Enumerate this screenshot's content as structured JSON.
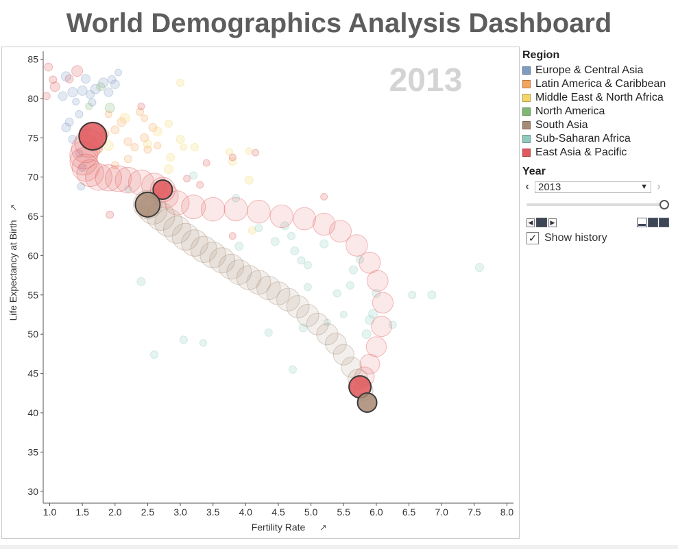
{
  "title": "World Demographics Analysis Dashboard",
  "colors": {
    "europe_central_asia": "#7f9bc2",
    "latin_america_caribbean": "#f4a45a",
    "middle_east_north_africa": "#f4d667",
    "north_america": "#7fb872",
    "south_asia": "#a88b75",
    "sub_saharan_africa": "#8fcbbf",
    "east_asia_pacific": "#e0595d"
  },
  "legend": {
    "title": "Region",
    "items": [
      {
        "label": "Europe & Central Asia",
        "color": "#7f9bc2"
      },
      {
        "label": "Latin America & Caribbean",
        "color": "#f4a45a"
      },
      {
        "label": "Middle East & North Africa",
        "color": "#f4d667"
      },
      {
        "label": "North America",
        "color": "#7fb872"
      },
      {
        "label": "South Asia",
        "color": "#a88b75"
      },
      {
        "label": "Sub-Saharan Africa",
        "color": "#8fcbbf"
      },
      {
        "label": "East Asia & Pacific",
        "color": "#e0595d"
      }
    ]
  },
  "year_filter": {
    "title": "Year",
    "selected": "2013",
    "show_history_label": "Show history",
    "show_history_checked": true,
    "prev_icon": "chevron-left-icon",
    "next_icon": "chevron-right-icon"
  },
  "chart_data": {
    "type": "scatter",
    "title": "",
    "year_label": "2013",
    "xlabel": "Fertility Rate",
    "ylabel": "Life Expectancy at Birth",
    "xlim": [
      0.9,
      8.1
    ],
    "ylim": [
      28.5,
      86
    ],
    "xticks": [
      1.0,
      1.5,
      2.0,
      2.5,
      3.0,
      3.5,
      4.0,
      4.5,
      5.0,
      5.5,
      6.0,
      6.5,
      7.0,
      7.5,
      8.0
    ],
    "yticks": [
      30,
      35,
      40,
      45,
      50,
      55,
      60,
      65,
      70,
      75,
      80,
      85
    ],
    "grid": false,
    "legend_position": "right",
    "history_series": [
      {
        "region": "East Asia & Pacific",
        "color": "#e0595d",
        "points": [
          [
            5.75,
            43.3
          ],
          [
            5.82,
            44.6
          ],
          [
            5.9,
            46.2
          ],
          [
            6.0,
            48.4
          ],
          [
            6.08,
            51.0
          ],
          [
            6.1,
            54.0
          ],
          [
            6.02,
            56.8
          ],
          [
            5.9,
            59.1
          ],
          [
            5.7,
            61.3
          ],
          [
            5.45,
            63.1
          ],
          [
            5.2,
            64.0
          ],
          [
            4.9,
            64.7
          ],
          [
            4.55,
            65.0
          ],
          [
            4.2,
            65.6
          ],
          [
            3.85,
            65.9
          ],
          [
            3.5,
            65.9
          ],
          [
            3.2,
            66.2
          ],
          [
            2.95,
            66.7
          ],
          [
            2.78,
            67.6
          ],
          [
            2.73,
            68.4
          ],
          [
            2.6,
            68.9
          ],
          [
            2.4,
            69.3
          ],
          [
            2.2,
            69.6
          ],
          [
            2.05,
            69.8
          ],
          [
            1.9,
            69.9
          ],
          [
            1.75,
            70.0
          ],
          [
            1.62,
            70.5
          ],
          [
            1.55,
            71.2
          ],
          [
            1.52,
            72.0
          ],
          [
            1.52,
            72.8
          ],
          [
            1.55,
            73.6
          ],
          [
            1.6,
            74.3
          ],
          [
            1.66,
            75.2
          ]
        ]
      },
      {
        "region": "South Asia",
        "color": "#a88b75",
        "points": [
          [
            5.86,
            41.3
          ],
          [
            5.8,
            42.8
          ],
          [
            5.72,
            44.3
          ],
          [
            5.62,
            45.8
          ],
          [
            5.5,
            47.4
          ],
          [
            5.38,
            48.8
          ],
          [
            5.25,
            50.0
          ],
          [
            5.1,
            51.3
          ],
          [
            4.95,
            52.4
          ],
          [
            4.8,
            53.5
          ],
          [
            4.65,
            54.4
          ],
          [
            4.5,
            55.2
          ],
          [
            4.35,
            55.9
          ],
          [
            4.2,
            56.6
          ],
          [
            4.05,
            57.2
          ],
          [
            3.9,
            57.9
          ],
          [
            3.78,
            58.6
          ],
          [
            3.64,
            59.4
          ],
          [
            3.5,
            60.1
          ],
          [
            3.36,
            60.8
          ],
          [
            3.22,
            61.6
          ],
          [
            3.08,
            62.4
          ],
          [
            2.95,
            63.3
          ],
          [
            2.82,
            64.2
          ],
          [
            2.7,
            65.0
          ],
          [
            2.58,
            65.8
          ],
          [
            2.5,
            66.5
          ]
        ]
      }
    ],
    "highlight_points": [
      {
        "region": "East Asia & Pacific",
        "x": 1.66,
        "y": 75.2,
        "size": 40,
        "color": "#e0595d"
      },
      {
        "region": "East Asia & Pacific",
        "x": 2.73,
        "y": 68.4,
        "size": 28,
        "color": "#e0595d"
      },
      {
        "region": "East Asia & Pacific",
        "x": 5.75,
        "y": 43.3,
        "size": 32,
        "color": "#e0595d"
      },
      {
        "region": "South Asia",
        "x": 2.5,
        "y": 66.5,
        "size": 36,
        "color": "#a88b75"
      },
      {
        "region": "South Asia",
        "x": 5.86,
        "y": 41.3,
        "size": 28,
        "color": "#a88b75"
      }
    ],
    "background_points": [
      {
        "x": 0.98,
        "y": 84.0,
        "s": 12,
        "c": "#e0595d"
      },
      {
        "x": 0.95,
        "y": 80.3,
        "s": 11,
        "c": "#e0595d"
      },
      {
        "x": 1.05,
        "y": 82.4,
        "s": 11,
        "c": "#e0595d"
      },
      {
        "x": 1.08,
        "y": 81.5,
        "s": 14,
        "c": "#e0595d"
      },
      {
        "x": 1.3,
        "y": 82.5,
        "s": 12,
        "c": "#e0595d"
      },
      {
        "x": 1.42,
        "y": 83.5,
        "s": 16,
        "c": "#e0595d"
      },
      {
        "x": 1.5,
        "y": 81.0,
        "s": 14,
        "c": "#7f9bc2"
      },
      {
        "x": 1.35,
        "y": 80.8,
        "s": 14,
        "c": "#7f9bc2"
      },
      {
        "x": 1.2,
        "y": 80.3,
        "s": 13,
        "c": "#7f9bc2"
      },
      {
        "x": 1.25,
        "y": 82.8,
        "s": 14,
        "c": "#7f9bc2"
      },
      {
        "x": 1.55,
        "y": 82.5,
        "s": 13,
        "c": "#7f9bc2"
      },
      {
        "x": 1.62,
        "y": 80.5,
        "s": 12,
        "c": "#7f9bc2"
      },
      {
        "x": 1.7,
        "y": 81.2,
        "s": 14,
        "c": "#7f9bc2"
      },
      {
        "x": 1.82,
        "y": 82.0,
        "s": 14,
        "c": "#7f9bc2"
      },
      {
        "x": 1.9,
        "y": 80.8,
        "s": 13,
        "c": "#7f9bc2"
      },
      {
        "x": 1.95,
        "y": 82.4,
        "s": 12,
        "c": "#7f9bc2"
      },
      {
        "x": 2.0,
        "y": 81.8,
        "s": 13,
        "c": "#7f9bc2"
      },
      {
        "x": 1.45,
        "y": 78.0,
        "s": 11,
        "c": "#7f9bc2"
      },
      {
        "x": 1.3,
        "y": 77.0,
        "s": 12,
        "c": "#7f9bc2"
      },
      {
        "x": 1.25,
        "y": 76.3,
        "s": 13,
        "c": "#7f9bc2"
      },
      {
        "x": 1.55,
        "y": 76.0,
        "s": 11,
        "c": "#7f9bc2"
      },
      {
        "x": 1.35,
        "y": 74.8,
        "s": 12,
        "c": "#7f9bc2"
      },
      {
        "x": 1.45,
        "y": 73.0,
        "s": 11,
        "c": "#7f9bc2"
      },
      {
        "x": 1.5,
        "y": 71.2,
        "s": 11,
        "c": "#7f9bc2"
      },
      {
        "x": 1.65,
        "y": 79.5,
        "s": 11,
        "c": "#7f9bc2"
      },
      {
        "x": 2.05,
        "y": 83.3,
        "s": 10,
        "c": "#7f9bc2"
      },
      {
        "x": 1.48,
        "y": 68.8,
        "s": 11,
        "c": "#7f9bc2"
      },
      {
        "x": 1.4,
        "y": 79.6,
        "s": 10,
        "c": "#7f9bc2"
      },
      {
        "x": 1.78,
        "y": 81.5,
        "s": 12,
        "c": "#7fb872"
      },
      {
        "x": 1.92,
        "y": 78.8,
        "s": 14,
        "c": "#7fb872"
      },
      {
        "x": 1.6,
        "y": 79.0,
        "s": 10,
        "c": "#7fb872"
      },
      {
        "x": 1.75,
        "y": 73.5,
        "s": 11,
        "c": "#f4a45a"
      },
      {
        "x": 1.85,
        "y": 75.5,
        "s": 11,
        "c": "#f4a45a"
      },
      {
        "x": 2.0,
        "y": 76.0,
        "s": 12,
        "c": "#f4a45a"
      },
      {
        "x": 2.1,
        "y": 77.0,
        "s": 13,
        "c": "#f4a45a"
      },
      {
        "x": 2.2,
        "y": 74.5,
        "s": 12,
        "c": "#f4a45a"
      },
      {
        "x": 2.3,
        "y": 73.8,
        "s": 11,
        "c": "#f4a45a"
      },
      {
        "x": 2.45,
        "y": 75.0,
        "s": 12,
        "c": "#f4a45a"
      },
      {
        "x": 2.5,
        "y": 73.5,
        "s": 11,
        "c": "#f4a45a"
      },
      {
        "x": 2.58,
        "y": 76.3,
        "s": 12,
        "c": "#f4a45a"
      },
      {
        "x": 2.2,
        "y": 72.3,
        "s": 11,
        "c": "#f4a45a"
      },
      {
        "x": 2.0,
        "y": 71.5,
        "s": 11,
        "c": "#f4a45a"
      },
      {
        "x": 2.38,
        "y": 78.3,
        "s": 11,
        "c": "#f4a45a"
      },
      {
        "x": 2.45,
        "y": 77.5,
        "s": 10,
        "c": "#f4a45a"
      },
      {
        "x": 2.65,
        "y": 74.0,
        "s": 10,
        "c": "#f4a45a"
      },
      {
        "x": 1.9,
        "y": 78.0,
        "s": 10,
        "c": "#f4a45a"
      },
      {
        "x": 2.4,
        "y": 79.0,
        "s": 10,
        "c": "#e0595d"
      },
      {
        "x": 1.9,
        "y": 74.0,
        "s": 14,
        "c": "#f4d667"
      },
      {
        "x": 2.15,
        "y": 77.5,
        "s": 14,
        "c": "#f4d667"
      },
      {
        "x": 2.5,
        "y": 74.2,
        "s": 12,
        "c": "#f4d667"
      },
      {
        "x": 2.65,
        "y": 75.8,
        "s": 13,
        "c": "#f4d667"
      },
      {
        "x": 2.82,
        "y": 71.0,
        "s": 13,
        "c": "#f4d667"
      },
      {
        "x": 2.85,
        "y": 72.5,
        "s": 12,
        "c": "#f4d667"
      },
      {
        "x": 3.0,
        "y": 74.8,
        "s": 12,
        "c": "#f4d667"
      },
      {
        "x": 3.0,
        "y": 82.0,
        "s": 11,
        "c": "#f4d667"
      },
      {
        "x": 3.22,
        "y": 73.8,
        "s": 11,
        "c": "#f4d667"
      },
      {
        "x": 2.82,
        "y": 76.8,
        "s": 11,
        "c": "#f4d667"
      },
      {
        "x": 3.05,
        "y": 73.8,
        "s": 10,
        "c": "#f4d667"
      },
      {
        "x": 3.75,
        "y": 73.2,
        "s": 10,
        "c": "#f4d667"
      },
      {
        "x": 3.8,
        "y": 72.0,
        "s": 12,
        "c": "#f4d667"
      },
      {
        "x": 4.05,
        "y": 73.3,
        "s": 10,
        "c": "#f4d667"
      },
      {
        "x": 4.05,
        "y": 69.6,
        "s": 12,
        "c": "#f4d667"
      },
      {
        "x": 4.1,
        "y": 63.2,
        "s": 11,
        "c": "#f4d667"
      },
      {
        "x": 2.45,
        "y": 65.8,
        "s": 11,
        "c": "#f4d667"
      },
      {
        "x": 3.4,
        "y": 71.8,
        "s": 10,
        "c": "#e0595d"
      },
      {
        "x": 3.8,
        "y": 72.5,
        "s": 10,
        "c": "#e0595d"
      },
      {
        "x": 4.15,
        "y": 73.1,
        "s": 10,
        "c": "#e0595d"
      },
      {
        "x": 3.1,
        "y": 69.8,
        "s": 10,
        "c": "#e0595d"
      },
      {
        "x": 3.3,
        "y": 69.0,
        "s": 10,
        "c": "#e0595d"
      },
      {
        "x": 1.92,
        "y": 65.2,
        "s": 11,
        "c": "#e0595d"
      },
      {
        "x": 3.8,
        "y": 62.5,
        "s": 10,
        "c": "#e0595d"
      },
      {
        "x": 5.2,
        "y": 67.5,
        "s": 10,
        "c": "#e0595d"
      },
      {
        "x": 2.2,
        "y": 68.5,
        "s": 10,
        "c": "#8fcbbf"
      },
      {
        "x": 2.4,
        "y": 56.7,
        "s": 12,
        "c": "#8fcbbf"
      },
      {
        "x": 2.6,
        "y": 47.4,
        "s": 11,
        "c": "#8fcbbf"
      },
      {
        "x": 3.05,
        "y": 49.3,
        "s": 11,
        "c": "#8fcbbf"
      },
      {
        "x": 3.35,
        "y": 48.9,
        "s": 10,
        "c": "#8fcbbf"
      },
      {
        "x": 3.2,
        "y": 70.2,
        "s": 11,
        "c": "#8fcbbf"
      },
      {
        "x": 3.85,
        "y": 67.3,
        "s": 11,
        "c": "#8fcbbf"
      },
      {
        "x": 3.9,
        "y": 61.2,
        "s": 12,
        "c": "#8fcbbf"
      },
      {
        "x": 4.2,
        "y": 63.5,
        "s": 11,
        "c": "#8fcbbf"
      },
      {
        "x": 4.45,
        "y": 61.8,
        "s": 12,
        "c": "#8fcbbf"
      },
      {
        "x": 4.6,
        "y": 63.8,
        "s": 12,
        "c": "#8fcbbf"
      },
      {
        "x": 4.7,
        "y": 62.5,
        "s": 11,
        "c": "#8fcbbf"
      },
      {
        "x": 4.75,
        "y": 60.6,
        "s": 12,
        "c": "#8fcbbf"
      },
      {
        "x": 4.85,
        "y": 59.4,
        "s": 11,
        "c": "#8fcbbf"
      },
      {
        "x": 4.95,
        "y": 58.8,
        "s": 11,
        "c": "#8fcbbf"
      },
      {
        "x": 4.35,
        "y": 50.2,
        "s": 11,
        "c": "#8fcbbf"
      },
      {
        "x": 4.72,
        "y": 45.5,
        "s": 11,
        "c": "#8fcbbf"
      },
      {
        "x": 4.88,
        "y": 50.8,
        "s": 12,
        "c": "#8fcbbf"
      },
      {
        "x": 4.95,
        "y": 56.0,
        "s": 11,
        "c": "#8fcbbf"
      },
      {
        "x": 5.2,
        "y": 61.5,
        "s": 12,
        "c": "#8fcbbf"
      },
      {
        "x": 5.4,
        "y": 55.2,
        "s": 11,
        "c": "#8fcbbf"
      },
      {
        "x": 5.6,
        "y": 56.2,
        "s": 11,
        "c": "#8fcbbf"
      },
      {
        "x": 5.65,
        "y": 58.2,
        "s": 12,
        "c": "#8fcbbf"
      },
      {
        "x": 5.85,
        "y": 50.0,
        "s": 13,
        "c": "#8fcbbf"
      },
      {
        "x": 5.9,
        "y": 51.8,
        "s": 13,
        "c": "#8fcbbf"
      },
      {
        "x": 5.95,
        "y": 52.6,
        "s": 13,
        "c": "#8fcbbf"
      },
      {
        "x": 6.0,
        "y": 55.2,
        "s": 12,
        "c": "#8fcbbf"
      },
      {
        "x": 6.25,
        "y": 51.2,
        "s": 11,
        "c": "#8fcbbf"
      },
      {
        "x": 6.55,
        "y": 55.0,
        "s": 11,
        "c": "#8fcbbf"
      },
      {
        "x": 6.85,
        "y": 55.0,
        "s": 12,
        "c": "#8fcbbf"
      },
      {
        "x": 7.58,
        "y": 58.5,
        "s": 12,
        "c": "#8fcbbf"
      },
      {
        "x": 5.25,
        "y": 51.5,
        "s": 10,
        "c": "#8fcbbf"
      },
      {
        "x": 5.75,
        "y": 59.5,
        "s": 11,
        "c": "#8fcbbf"
      },
      {
        "x": 5.5,
        "y": 52.5,
        "s": 10,
        "c": "#8fcbbf"
      }
    ]
  },
  "icons": {
    "pin": "pin-icon",
    "dropdown": "chevron-down-icon",
    "play_prev": "step-back-icon",
    "play_stop": "stop-icon",
    "play_next": "step-forward-icon",
    "check": "check-icon"
  }
}
